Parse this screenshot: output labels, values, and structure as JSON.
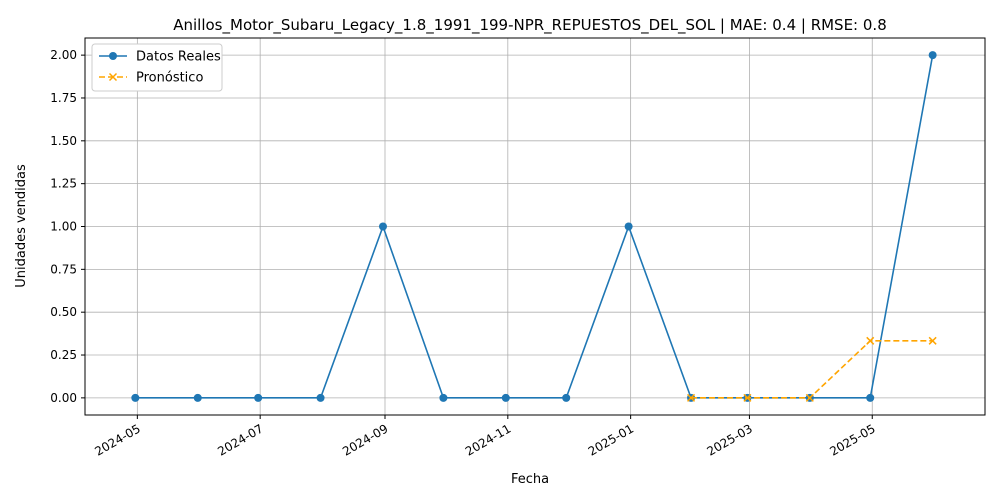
{
  "chart_data": {
    "type": "line",
    "title": "Anillos_Motor_Subaru_Legacy_1.8_1991_199-NPR_REPUESTOS_DEL_SOL | MAE: 0.4 | RMSE: 0.8",
    "xlabel": "Fecha",
    "ylabel": "Unidades vendidas",
    "x_ticks": [
      "2024-05",
      "2024-07",
      "2024-09",
      "2024-11",
      "2025-01",
      "2025-03",
      "2025-05"
    ],
    "y_ticks": [
      "0.00",
      "0.25",
      "0.50",
      "0.75",
      "1.00",
      "1.25",
      "1.50",
      "1.75",
      "2.00"
    ],
    "ylim": [
      -0.1,
      2.1
    ],
    "xlim": [
      "2024-04-05",
      "2025-06-26"
    ],
    "grid": true,
    "legend_position": "top-left",
    "series": [
      {
        "name": "Datos Reales",
        "color": "#1f77b4",
        "marker": "circle",
        "line_style": "solid",
        "x": [
          "2024-04-30",
          "2024-05-31",
          "2024-06-30",
          "2024-07-31",
          "2024-08-31",
          "2024-09-30",
          "2024-10-31",
          "2024-11-30",
          "2024-12-31",
          "2025-01-31",
          "2025-02-28",
          "2025-03-31",
          "2025-04-30",
          "2025-05-31"
        ],
        "values": [
          0,
          0,
          0,
          0,
          1,
          0,
          0,
          0,
          1,
          0,
          0,
          0,
          0,
          2
        ]
      },
      {
        "name": "Pronóstico",
        "color": "#ffa500",
        "marker": "x",
        "line_style": "dashed",
        "x": [
          "2025-01-31",
          "2025-02-28",
          "2025-03-31",
          "2025-04-30",
          "2025-05-31"
        ],
        "values": [
          0,
          0,
          0,
          0.333,
          0.333
        ]
      }
    ]
  }
}
